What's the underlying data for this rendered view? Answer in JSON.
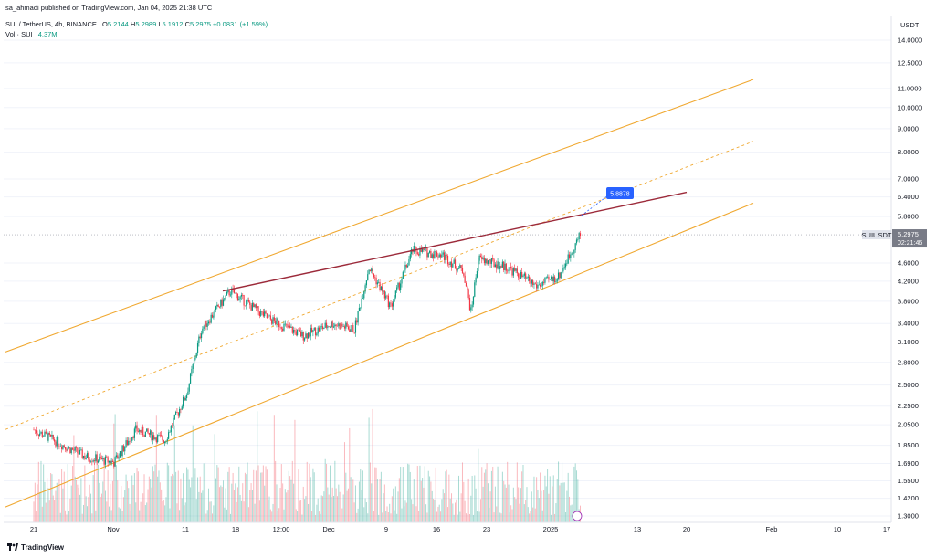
{
  "header": {
    "publisher_line": "sa_ahmadi published on TradingView.com, Jan 04, 2025 21:38 UTC"
  },
  "legend": {
    "symbol": "SUI / TetherUS, 4h, BINANCE",
    "open_label": "O",
    "open": "5.2144",
    "high_label": "H",
    "high": "5.2989",
    "low_label": "L",
    "low": "5.1912",
    "close_label": "C",
    "close": "5.2975",
    "change": "+0.0831 (+1.59%)",
    "vol_label": "Vol · SUI",
    "vol_value": "4.37M"
  },
  "price_axis": {
    "currency": "USDT",
    "ticks": [
      "14.0000",
      "12.5000",
      "11.0000",
      "10.0000",
      "9.0000",
      "8.0000",
      "7.0000",
      "6.4000",
      "5.8000",
      "4.6000",
      "4.2000",
      "3.8000",
      "3.4000",
      "3.1000",
      "2.8000",
      "2.5000",
      "2.2500",
      "2.0500",
      "1.8500",
      "1.6900",
      "1.5500",
      "1.4200",
      "1.3000"
    ]
  },
  "time_axis": {
    "ticks": [
      "21",
      "Nov",
      "11",
      "18",
      "12:00",
      "Dec",
      "9",
      "16",
      "23",
      "2025",
      "13",
      "20",
      "Feb",
      "10",
      "17"
    ]
  },
  "price_tag": {
    "symbol": "SUIUSDT",
    "price": "5.2975",
    "countdown": "02:21:46"
  },
  "callout": {
    "value": "5.8878"
  },
  "colors": {
    "channel": "#f0a830",
    "resistance": "#9c2a3a",
    "up": "#089981",
    "down": "#f23645",
    "callout_bg": "#2962ff"
  },
  "chart_data": {
    "type": "candlestick",
    "y_scale": "log",
    "ylim": [
      1.3,
      14.0
    ],
    "x_range": [
      "Oct 21",
      "Feb 17"
    ],
    "approx_close_path": [
      {
        "x": "Oct 21",
        "y": 2.0
      },
      {
        "x": "Oct 28",
        "y": 1.75
      },
      {
        "x": "Nov 1",
        "y": 1.7
      },
      {
        "x": "Nov 4",
        "y": 2.0
      },
      {
        "x": "Nov 8",
        "y": 1.9
      },
      {
        "x": "Nov 11",
        "y": 2.4
      },
      {
        "x": "Nov 13",
        "y": 3.3
      },
      {
        "x": "Nov 17",
        "y": 4.0
      },
      {
        "x": "Nov 22",
        "y": 3.5
      },
      {
        "x": "Nov 27",
        "y": 3.2
      },
      {
        "x": "Dec 1",
        "y": 3.4
      },
      {
        "x": "Dec 4",
        "y": 3.3
      },
      {
        "x": "Dec 6",
        "y": 4.5
      },
      {
        "x": "Dec 9",
        "y": 3.7
      },
      {
        "x": "Dec 12",
        "y": 4.9
      },
      {
        "x": "Dec 16",
        "y": 4.8
      },
      {
        "x": "Dec 19",
        "y": 4.4
      },
      {
        "x": "Dec 20",
        "y": 3.6
      },
      {
        "x": "Dec 21",
        "y": 4.7
      },
      {
        "x": "Dec 25",
        "y": 4.5
      },
      {
        "x": "Dec 29",
        "y": 4.1
      },
      {
        "x": "Jan 1",
        "y": 4.3
      },
      {
        "x": "Jan 4",
        "y": 5.2975
      }
    ],
    "annotations": [
      {
        "type": "callout",
        "text": "5.8878"
      }
    ]
  }
}
